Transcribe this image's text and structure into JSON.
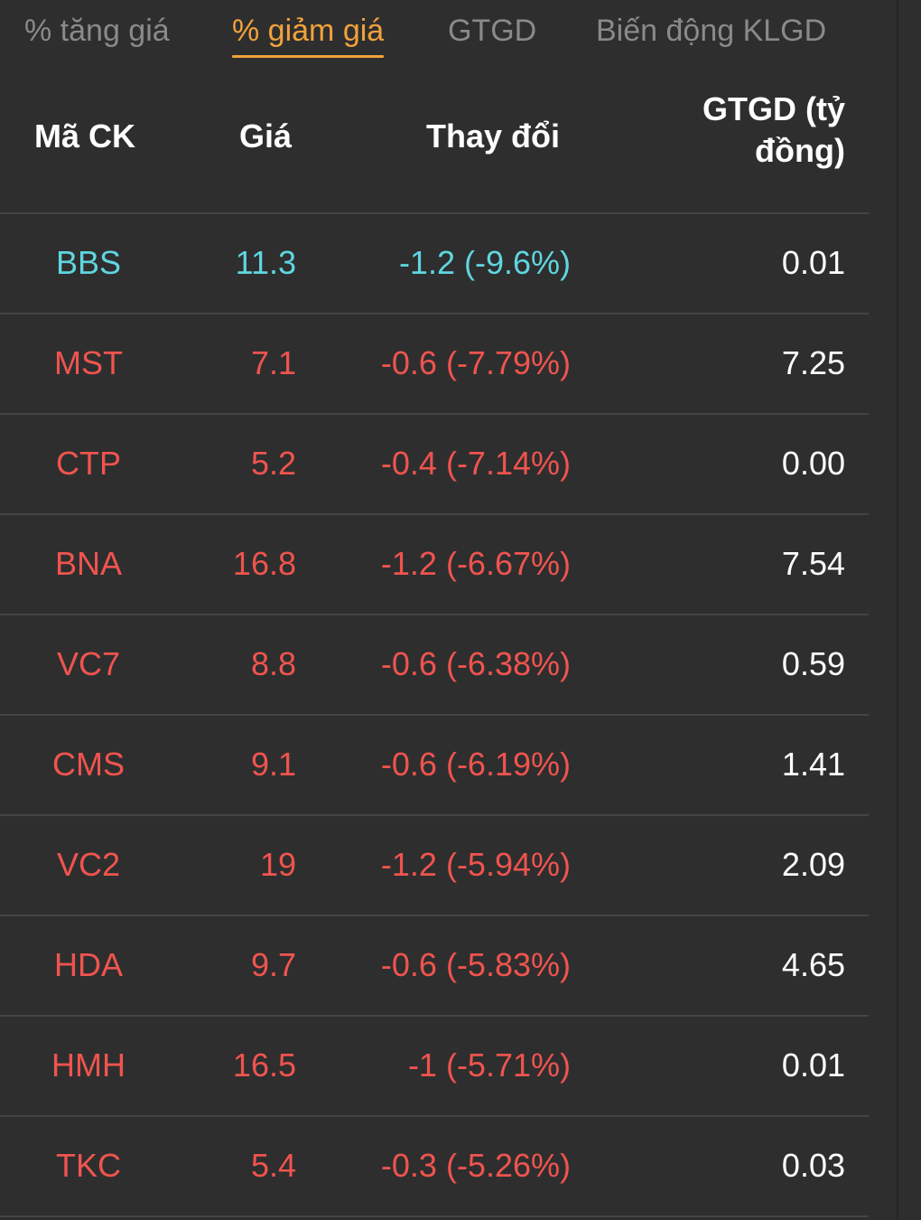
{
  "tabs": [
    {
      "label": "% tăng giá",
      "active": false
    },
    {
      "label": "% giảm giá",
      "active": true
    },
    {
      "label": "GTGD",
      "active": false
    },
    {
      "label": "Biến động KLGD",
      "active": false
    }
  ],
  "columns": {
    "symbol": "Mã CK",
    "price": "Giá",
    "change": "Thay đổi",
    "value_line1": "GTGD (tỷ",
    "value_line2": "đồng)"
  },
  "colors": {
    "active_tab": "#f0a23a",
    "decrease": "#f0544e",
    "floor": "#5fd6e0",
    "background": "#2e2e2f"
  },
  "rows": [
    {
      "symbol": "BBS",
      "price": "11.3",
      "change": "-1.2 (-9.6%)",
      "value": "0.01",
      "status": "floor"
    },
    {
      "symbol": "MST",
      "price": "7.1",
      "change": "-0.6 (-7.79%)",
      "value": "7.25",
      "status": "down"
    },
    {
      "symbol": "CTP",
      "price": "5.2",
      "change": "-0.4 (-7.14%)",
      "value": "0.00",
      "status": "down"
    },
    {
      "symbol": "BNA",
      "price": "16.8",
      "change": "-1.2 (-6.67%)",
      "value": "7.54",
      "status": "down"
    },
    {
      "symbol": "VC7",
      "price": "8.8",
      "change": "-0.6 (-6.38%)",
      "value": "0.59",
      "status": "down"
    },
    {
      "symbol": "CMS",
      "price": "9.1",
      "change": "-0.6 (-6.19%)",
      "value": "1.41",
      "status": "down"
    },
    {
      "symbol": "VC2",
      "price": "19",
      "change": "-1.2 (-5.94%)",
      "value": "2.09",
      "status": "down"
    },
    {
      "symbol": "HDA",
      "price": "9.7",
      "change": "-0.6 (-5.83%)",
      "value": "4.65",
      "status": "down"
    },
    {
      "symbol": "HMH",
      "price": "16.5",
      "change": "-1 (-5.71%)",
      "value": "0.01",
      "status": "down"
    },
    {
      "symbol": "TKC",
      "price": "5.4",
      "change": "-0.3 (-5.26%)",
      "value": "0.03",
      "status": "down"
    }
  ]
}
